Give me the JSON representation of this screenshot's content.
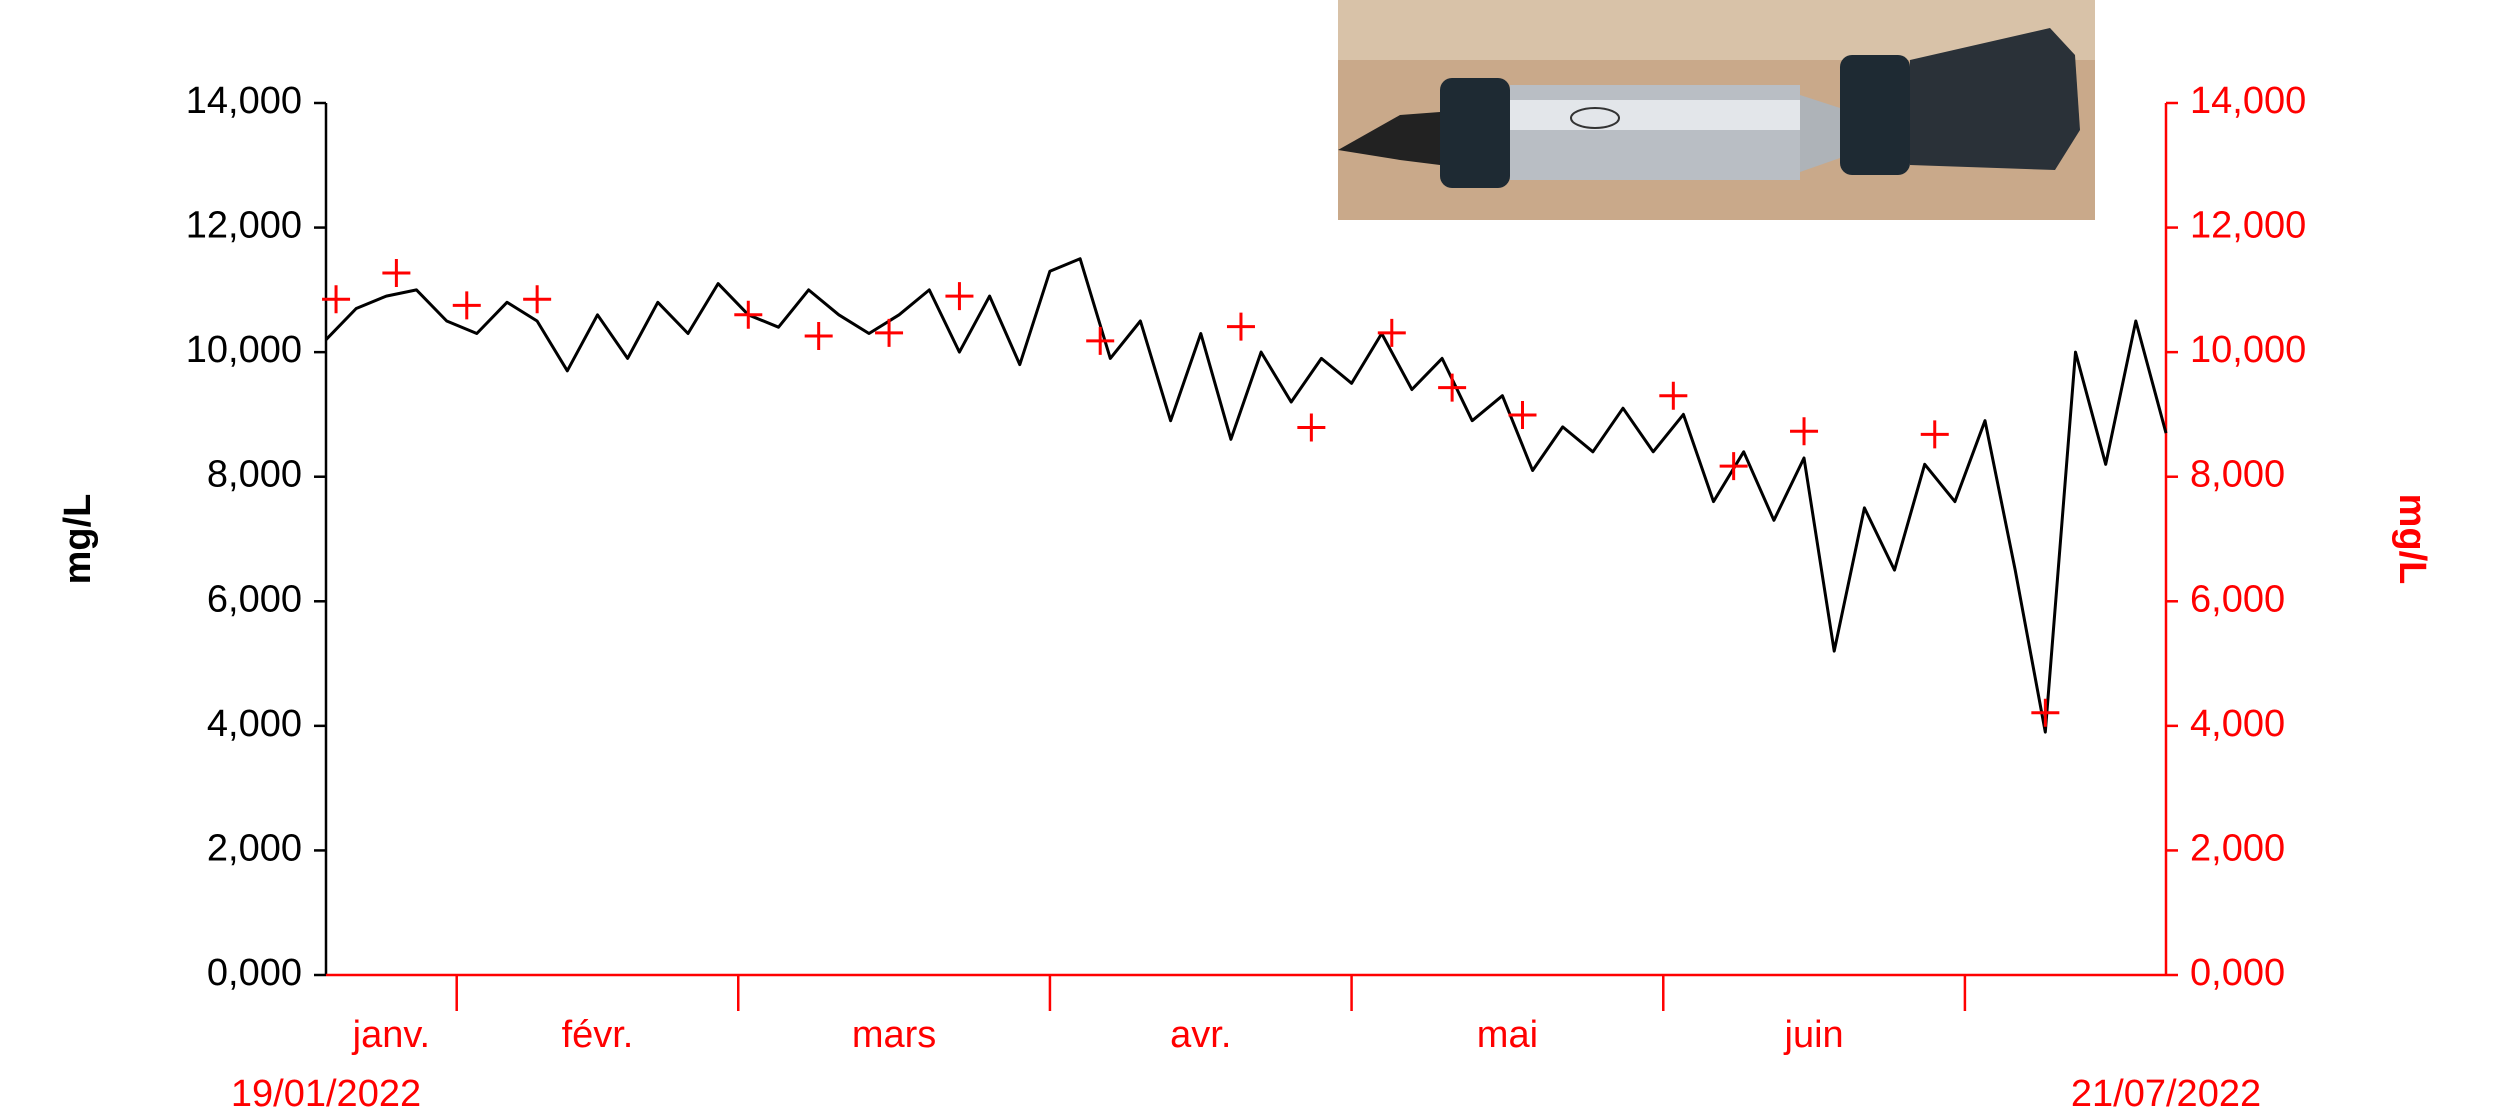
{
  "chart_data": {
    "type": "line",
    "xlim": [
      "19/01/2022",
      "21/07/2022"
    ],
    "categories": [
      "janv.",
      "févr.",
      "mars",
      "avr.",
      "mai",
      "juin",
      null
    ],
    "ylabel": "mg/L",
    "y2label": "mg/L",
    "ylim": [
      0,
      14
    ],
    "yticks": [
      {
        "value": 0,
        "label": "0,000"
      },
      {
        "value": 2,
        "label": "2,000"
      },
      {
        "value": 4,
        "label": "4,000"
      },
      {
        "value": 6,
        "label": "6,000"
      },
      {
        "value": 8,
        "label": "8,000"
      },
      {
        "value": 10,
        "label": "10,000"
      },
      {
        "value": 12,
        "label": "12,000"
      },
      {
        "value": 14,
        "label": "14,000"
      }
    ],
    "y2lim": [
      0,
      14
    ],
    "y2ticks": [
      {
        "value": 0,
        "label": "0,000"
      },
      {
        "value": 2,
        "label": "2,000"
      },
      {
        "value": 4,
        "label": "4,000"
      },
      {
        "value": 6,
        "label": "6,000"
      },
      {
        "value": 8,
        "label": "8,000"
      },
      {
        "value": 10,
        "label": "10,000"
      },
      {
        "value": 12,
        "label": "12,000"
      },
      {
        "value": 14,
        "label": "14,000"
      }
    ],
    "series": [
      {
        "color": "#000000",
        "axis": "y",
        "marker": "line",
        "x": [
          "19/01/2022",
          "22/01/2022",
          "25/01/2022",
          "28/01/2022",
          "31/01/2022",
          "03/02/2022",
          "06/02/2022",
          "09/02/2022",
          "12/02/2022",
          "15/02/2022",
          "18/02/2022",
          "21/02/2022",
          "24/02/2022",
          "27/02/2022",
          "02/03/2022",
          "05/03/2022",
          "08/03/2022",
          "11/03/2022",
          "14/03/2022",
          "17/03/2022",
          "20/03/2022",
          "23/03/2022",
          "26/03/2022",
          "29/03/2022",
          "01/04/2022",
          "04/04/2022",
          "07/04/2022",
          "10/04/2022",
          "13/04/2022",
          "16/04/2022",
          "19/04/2022",
          "22/04/2022",
          "25/04/2022",
          "28/04/2022",
          "01/05/2022",
          "04/05/2022",
          "07/05/2022",
          "10/05/2022",
          "13/05/2022",
          "16/05/2022",
          "19/05/2022",
          "22/05/2022",
          "25/05/2022",
          "28/05/2022",
          "31/05/2022",
          "03/06/2022",
          "06/06/2022",
          "09/06/2022",
          "12/06/2022",
          "15/06/2022",
          "18/06/2022",
          "21/06/2022",
          "24/06/2022",
          "27/06/2022",
          "30/06/2022",
          "03/07/2022",
          "06/07/2022",
          "09/07/2022",
          "12/07/2022",
          "15/07/2022",
          "18/07/2022",
          "21/07/2022"
        ],
        "values": [
          10.2,
          10.7,
          10.9,
          11.0,
          10.5,
          10.3,
          10.8,
          10.5,
          9.7,
          10.6,
          9.9,
          10.8,
          10.3,
          11.1,
          10.6,
          10.4,
          11.0,
          10.6,
          10.3,
          10.6,
          11.0,
          10.0,
          10.9,
          9.8,
          11.3,
          11.5,
          9.9,
          10.5,
          8.9,
          10.3,
          8.6,
          10.0,
          9.2,
          9.9,
          9.5,
          10.3,
          9.4,
          9.9,
          8.9,
          9.3,
          8.1,
          8.8,
          8.4,
          9.1,
          8.4,
          9.0,
          7.6,
          8.4,
          7.3,
          8.3,
          5.2,
          7.5,
          6.5,
          8.2,
          7.6,
          8.9,
          6.5,
          3.9,
          10.0,
          8.2,
          10.5,
          8.7
        ]
      },
      {
        "color": "#ff0000",
        "axis": "y2",
        "marker": "cross",
        "x": [
          "20/01/2022",
          "26/01/2022",
          "02/02/2022",
          "09/02/2022",
          "02/03/2022",
          "09/03/2022",
          "16/03/2022",
          "23/03/2022",
          "06/04/2022",
          "20/04/2022",
          "27/04/2022",
          "05/05/2022",
          "11/05/2022",
          "18/05/2022",
          "02/06/2022",
          "08/06/2022",
          "15/06/2022",
          "28/06/2022",
          "09/07/2022"
        ],
        "values": [
          10.85,
          11.27,
          10.75,
          10.85,
          10.6,
          10.26,
          10.31,
          10.9,
          10.18,
          10.41,
          8.79,
          10.31,
          9.43,
          8.99,
          9.3,
          8.17,
          8.73,
          8.68,
          4.21
        ]
      }
    ]
  }
}
